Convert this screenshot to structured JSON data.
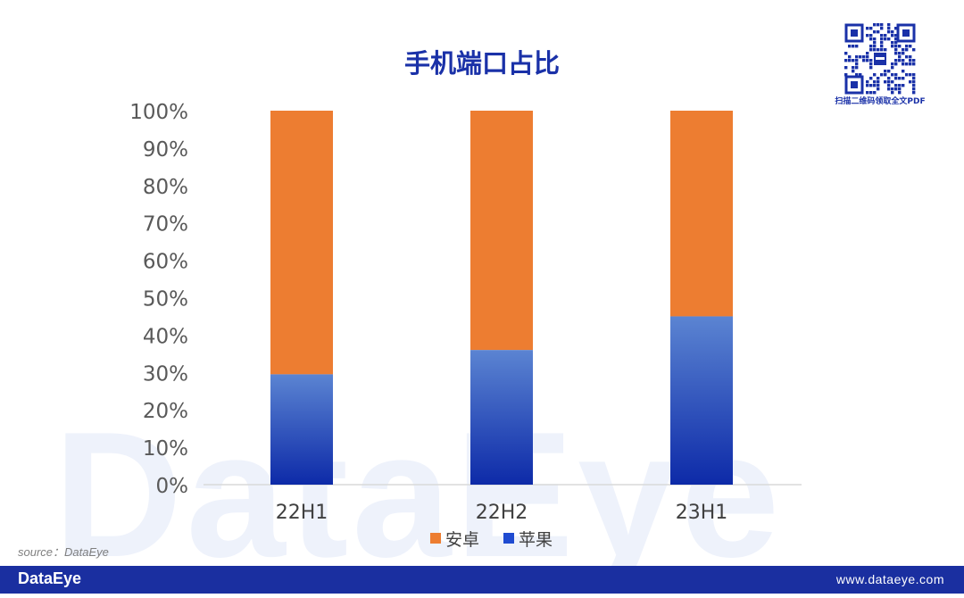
{
  "watermark": "DataEye",
  "qr": {
    "caption": "扫描二维码领取全文PDF",
    "icon": "qr-code-icon"
  },
  "source": "source：DataEye",
  "footer": {
    "brand": "DataEye",
    "url": "www.dataeye.com",
    "background": "#1a2fa0"
  },
  "colors": {
    "android": "#ed7d31",
    "apple_top": "#5b84d2",
    "apple_bottom": "#0d2aa8",
    "title": "#1a31a8"
  },
  "chart_data": {
    "type": "bar",
    "stacked": true,
    "title": "手机端口占比",
    "categories": [
      "22H1",
      "22H2",
      "23H1"
    ],
    "series": [
      {
        "name": "苹果",
        "values": [
          29.5,
          36,
          45
        ]
      },
      {
        "name": "安卓",
        "values": [
          70.5,
          64,
          55
        ]
      }
    ],
    "yticks": [
      "0%",
      "10%",
      "20%",
      "30%",
      "40%",
      "50%",
      "60%",
      "70%",
      "80%",
      "90%",
      "100%"
    ],
    "ylim": [
      0,
      100
    ],
    "grid": false,
    "legend_position": "bottom",
    "legend": [
      {
        "label": "安卓",
        "color": "#ed7d31"
      },
      {
        "label": "苹果",
        "color": "#1f4bd1"
      }
    ]
  }
}
